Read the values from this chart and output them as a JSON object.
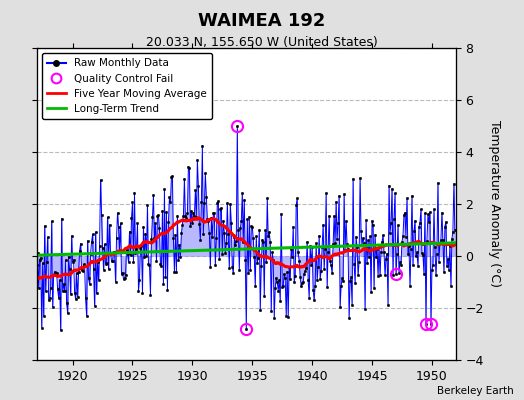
{
  "title": "WAIMEA 192",
  "subtitle": "20.033 N, 155.650 W (United States)",
  "ylabel_right": "Temperature Anomaly (°C)",
  "credit": "Berkeley Earth",
  "xlim": [
    1917.0,
    1952.0
  ],
  "ylim": [
    -4,
    8
  ],
  "yticks": [
    -4,
    -2,
    0,
    2,
    4,
    6,
    8
  ],
  "xticks": [
    1920,
    1925,
    1930,
    1935,
    1940,
    1945,
    1950
  ],
  "raw_color": "#0000ff",
  "stem_color": "#8888ff",
  "avg_color": "#ff0000",
  "trend_color": "#00bb00",
  "qc_color": "#ff00ff",
  "bg_color": "#e0e0e0",
  "plot_bg": "#ffffff",
  "grid_color": "#bbbbbb",
  "qc_points": [
    {
      "year": 1933.75,
      "value": 5.0
    },
    {
      "year": 1934.5,
      "value": -2.8
    },
    {
      "year": 1947.0,
      "value": -0.7
    },
    {
      "year": 1949.5,
      "value": -2.6
    },
    {
      "year": 1949.9,
      "value": -2.6
    }
  ]
}
